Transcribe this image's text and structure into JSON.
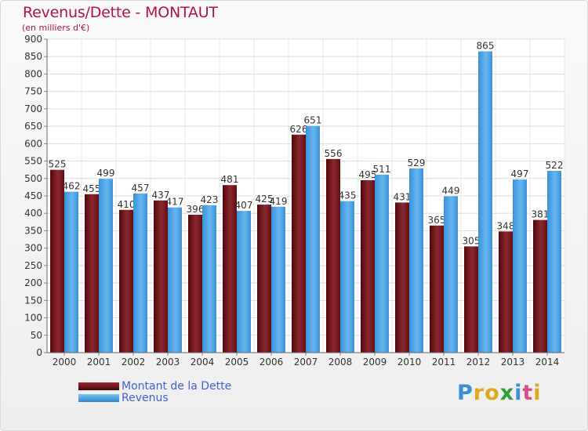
{
  "chart_data": {
    "type": "bar",
    "title": "Revenus/Dette - MONTAUT",
    "subtitle": "(en milliers d'€)",
    "categories": [
      "2000",
      "2001",
      "2002",
      "2003",
      "2004",
      "2005",
      "2006",
      "2007",
      "2008",
      "2009",
      "2010",
      "2011",
      "2012",
      "2013",
      "2014"
    ],
    "series": [
      {
        "name": "Montant de la Dette",
        "color": "#7a1a20",
        "values": [
          525,
          455,
          410,
          437,
          396,
          481,
          425,
          626,
          556,
          495,
          431,
          365,
          305,
          348,
          381
        ]
      },
      {
        "name": "Revenus",
        "color": "#4aa3e6",
        "values": [
          462,
          499,
          457,
          417,
          423,
          407,
          419,
          651,
          435,
          511,
          529,
          449,
          865,
          497,
          522
        ]
      }
    ],
    "ylim": [
      0,
      900
    ],
    "yticks": [
      0,
      50,
      100,
      150,
      200,
      250,
      300,
      350,
      400,
      450,
      500,
      550,
      600,
      650,
      700,
      750,
      800,
      850,
      900
    ],
    "grid": true,
    "legend": "bottom-left"
  },
  "logo": {
    "letters": [
      "P",
      "r",
      "o",
      "x",
      "i",
      "t",
      "i"
    ],
    "colors": [
      "#3b8fd6",
      "#e0a820",
      "#e0a820",
      "#2f9e3f",
      "#3b8fd6",
      "#d94d87",
      "#e0a820"
    ]
  }
}
